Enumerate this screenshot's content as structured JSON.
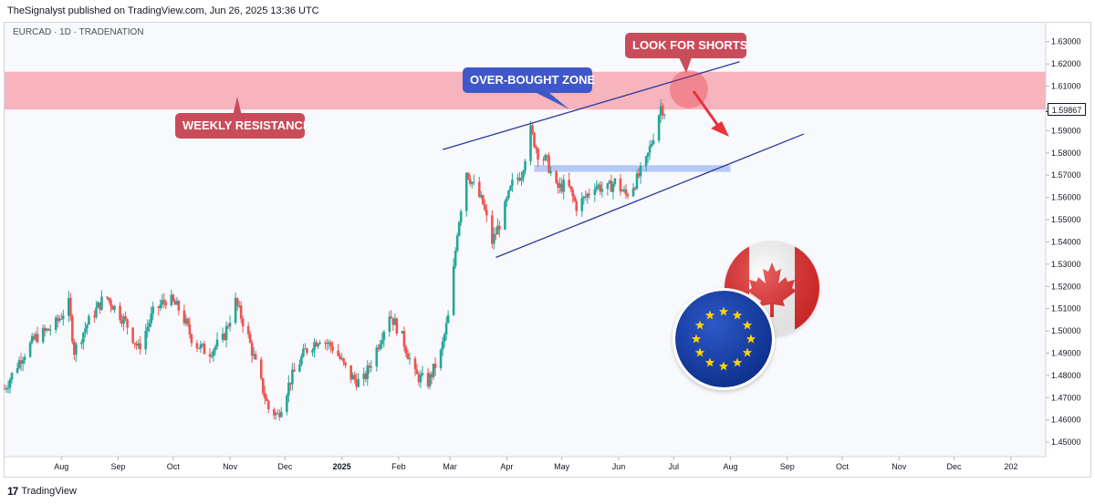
{
  "header": {
    "published_text": "TheSignalyst published on TradingView.com, Jun 26, 2025 13:36 UTC",
    "symbol_text": "EURCAD · 1D · TRADENATION"
  },
  "footer": {
    "brand": "TradingView",
    "logo_glyph": "17"
  },
  "annotations": {
    "weekly_resistance": "WEEKLY RESISTANCE",
    "overbought_zone": "OVER-BOUGHT ZONE",
    "look_for_shorts": "LOOK FOR SHORTS"
  },
  "icons": [
    "canada-flag-icon",
    "eu-flag-icon",
    "tradingview-logo-icon"
  ],
  "colors": {
    "up_candle": "#26a69a",
    "down_candle": "#ef5350",
    "resistance_zone": "#f7a8b2",
    "demand_zone": "#9fb8f5",
    "trendline": "#2a3a9c",
    "callout_red": "#c94c5b",
    "callout_blue": "#3f57c8",
    "arrow_red": "#e8323c"
  },
  "chart_data": {
    "type": "candlestick",
    "symbol": "EURCAD",
    "timeframe": "1D",
    "last_price": "1.59867",
    "ylim": [
      1.4435,
      1.6385
    ],
    "y_ticks": [
      "1.45000",
      "1.46000",
      "1.47000",
      "1.48000",
      "1.49000",
      "1.50000",
      "1.51000",
      "1.52000",
      "1.53000",
      "1.54000",
      "1.55000",
      "1.56000",
      "1.57000",
      "1.58000",
      "1.59000",
      "1.60000",
      "1.61000",
      "1.62000",
      "1.63000"
    ],
    "x_ticks": [
      "Aug",
      "Sep",
      "Oct",
      "Nov",
      "Dec",
      "2025",
      "Feb",
      "Mar",
      "Apr",
      "May",
      "Jun",
      "Jul",
      "Aug",
      "Sep",
      "Oct",
      "Nov",
      "Dec",
      "202"
    ],
    "x_tick_dates": [
      "2024-08-01",
      "2024-09-01",
      "2024-10-01",
      "2024-11-01",
      "2024-12-01",
      "2025-01-01",
      "2025-02-01",
      "2025-03-01",
      "2025-04-01",
      "2025-05-01",
      "2025-06-01",
      "2025-07-01",
      "2025-08-01",
      "2025-09-01",
      "2025-10-01",
      "2025-11-01",
      "2025-12-01",
      "2026-01-01"
    ],
    "date_range": [
      "2024-07-01",
      "2026-01-20"
    ],
    "close_path": [
      {
        "date": "2024-07-01",
        "price": 1.474
      },
      {
        "date": "2024-07-10",
        "price": 1.488
      },
      {
        "date": "2024-07-18",
        "price": 1.497
      },
      {
        "date": "2024-07-28",
        "price": 1.502
      },
      {
        "date": "2024-08-05",
        "price": 1.512
      },
      {
        "date": "2024-08-08",
        "price": 1.491
      },
      {
        "date": "2024-08-15",
        "price": 1.503
      },
      {
        "date": "2024-08-25",
        "price": 1.516
      },
      {
        "date": "2024-09-05",
        "price": 1.504
      },
      {
        "date": "2024-09-12",
        "price": 1.492
      },
      {
        "date": "2024-09-20",
        "price": 1.508
      },
      {
        "date": "2024-09-28",
        "price": 1.515
      },
      {
        "date": "2024-10-05",
        "price": 1.509
      },
      {
        "date": "2024-10-12",
        "price": 1.495
      },
      {
        "date": "2024-10-20",
        "price": 1.49
      },
      {
        "date": "2024-10-28",
        "price": 1.496
      },
      {
        "date": "2024-11-04",
        "price": 1.513
      },
      {
        "date": "2024-11-10",
        "price": 1.5
      },
      {
        "date": "2024-11-16",
        "price": 1.482
      },
      {
        "date": "2024-11-22",
        "price": 1.465
      },
      {
        "date": "2024-11-27",
        "price": 1.462
      },
      {
        "date": "2024-12-04",
        "price": 1.478
      },
      {
        "date": "2024-12-12",
        "price": 1.491
      },
      {
        "date": "2024-12-20",
        "price": 1.497
      },
      {
        "date": "2024-12-28",
        "price": 1.492
      },
      {
        "date": "2025-01-05",
        "price": 1.48
      },
      {
        "date": "2025-01-12",
        "price": 1.476
      },
      {
        "date": "2025-01-20",
        "price": 1.492
      },
      {
        "date": "2025-01-27",
        "price": 1.508
      },
      {
        "date": "2025-02-03",
        "price": 1.497
      },
      {
        "date": "2025-02-10",
        "price": 1.48
      },
      {
        "date": "2025-02-17",
        "price": 1.477
      },
      {
        "date": "2025-02-24",
        "price": 1.49
      },
      {
        "date": "2025-03-01",
        "price": 1.51
      },
      {
        "date": "2025-03-05",
        "price": 1.545
      },
      {
        "date": "2025-03-10",
        "price": 1.572
      },
      {
        "date": "2025-03-14",
        "price": 1.565
      },
      {
        "date": "2025-03-19",
        "price": 1.557
      },
      {
        "date": "2025-03-24",
        "price": 1.54
      },
      {
        "date": "2025-03-29",
        "price": 1.55
      },
      {
        "date": "2025-04-04",
        "price": 1.566
      },
      {
        "date": "2025-04-09",
        "price": 1.571
      },
      {
        "date": "2025-04-14",
        "price": 1.59
      },
      {
        "date": "2025-04-18",
        "price": 1.58
      },
      {
        "date": "2025-04-23",
        "price": 1.576
      },
      {
        "date": "2025-04-28",
        "price": 1.564
      },
      {
        "date": "2025-05-04",
        "price": 1.566
      },
      {
        "date": "2025-05-09",
        "price": 1.556
      },
      {
        "date": "2025-05-14",
        "price": 1.56
      },
      {
        "date": "2025-05-19",
        "price": 1.566
      },
      {
        "date": "2025-05-25",
        "price": 1.563
      },
      {
        "date": "2025-05-30",
        "price": 1.567
      },
      {
        "date": "2025-06-05",
        "price": 1.561
      },
      {
        "date": "2025-06-11",
        "price": 1.568
      },
      {
        "date": "2025-06-16",
        "price": 1.576
      },
      {
        "date": "2025-06-20",
        "price": 1.588
      },
      {
        "date": "2025-06-24",
        "price": 1.601
      },
      {
        "date": "2025-06-26",
        "price": 1.5987
      }
    ],
    "zones": [
      {
        "name": "weekly-resistance-zone",
        "low": 1.5995,
        "high": 1.6165,
        "from": "2024-07-01",
        "to": "2026-01-20"
      },
      {
        "name": "support-zone",
        "low": 1.5715,
        "high": 1.5745,
        "from": "2025-04-16",
        "to": "2025-08-01"
      }
    ],
    "trendlines": [
      {
        "name": "upper-channel-line",
        "from": {
          "date": "2025-02-25",
          "price": 1.5815
        },
        "to": {
          "date": "2025-08-06",
          "price": 1.621
        }
      },
      {
        "name": "lower-channel-line",
        "from": {
          "date": "2025-03-26",
          "price": 1.533
        },
        "to": {
          "date": "2025-09-10",
          "price": 1.5885
        }
      }
    ]
  }
}
